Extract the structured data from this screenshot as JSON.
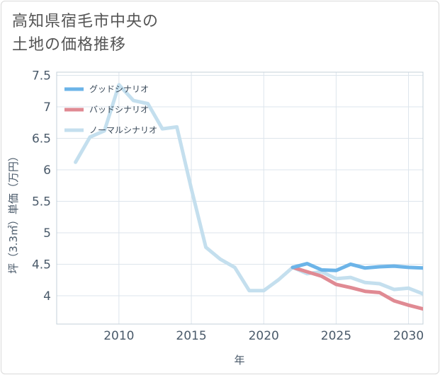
{
  "title": {
    "line1": "高知県宿毛市中央の",
    "line2": "土地の価格推移"
  },
  "chart_data": {
    "type": "line",
    "xlabel": "年",
    "ylabel": "坪（3.3㎡）単価（万円）",
    "xlim": [
      2005.7,
      2031
    ],
    "ylim": [
      3.55,
      7.55
    ],
    "x_ticks": [
      "2010",
      "2015",
      "2020",
      "2025",
      "2030"
    ],
    "x_tick_values": [
      2010,
      2015,
      2020,
      2025,
      2030
    ],
    "y_ticks": [
      "4",
      "4.5",
      "5",
      "5.5",
      "6",
      "6.5",
      "7",
      "7.5"
    ],
    "y_tick_values": [
      4,
      4.5,
      5,
      5.5,
      6,
      6.5,
      7,
      7.5
    ],
    "grid": true,
    "legend_position": "top-left",
    "series": [
      {
        "name": "グッドシナリオ",
        "color": "#6cb4e8",
        "x": [
          2022,
          2023,
          2024,
          2025,
          2026,
          2027,
          2028,
          2029,
          2030,
          2031
        ],
        "values": [
          4.45,
          4.51,
          4.41,
          4.4,
          4.5,
          4.44,
          4.46,
          4.47,
          4.45,
          4.44
        ]
      },
      {
        "name": "バッドシナリオ",
        "color": "#e08a93",
        "x": [
          2022,
          2023,
          2024,
          2025,
          2026,
          2027,
          2028,
          2029,
          2030,
          2031
        ],
        "values": [
          4.45,
          4.38,
          4.31,
          4.18,
          4.13,
          4.07,
          4.05,
          3.92,
          3.85,
          3.79
        ]
      },
      {
        "name": "ノーマルシナリオ",
        "color": "#c4dfee",
        "x": [
          2007,
          2008,
          2009,
          2010,
          2011,
          2012,
          2013,
          2014,
          2015,
          2016,
          2017,
          2018,
          2019,
          2020,
          2021,
          2022,
          2023,
          2024,
          2025,
          2026,
          2027,
          2028,
          2029,
          2030,
          2031
        ],
        "values": [
          6.12,
          6.52,
          6.62,
          7.35,
          7.1,
          7.05,
          6.65,
          6.68,
          5.7,
          4.77,
          4.58,
          4.45,
          4.08,
          4.08,
          4.25,
          4.45,
          4.35,
          4.38,
          4.27,
          4.29,
          4.21,
          4.19,
          4.1,
          4.12,
          4.03
        ]
      }
    ]
  }
}
